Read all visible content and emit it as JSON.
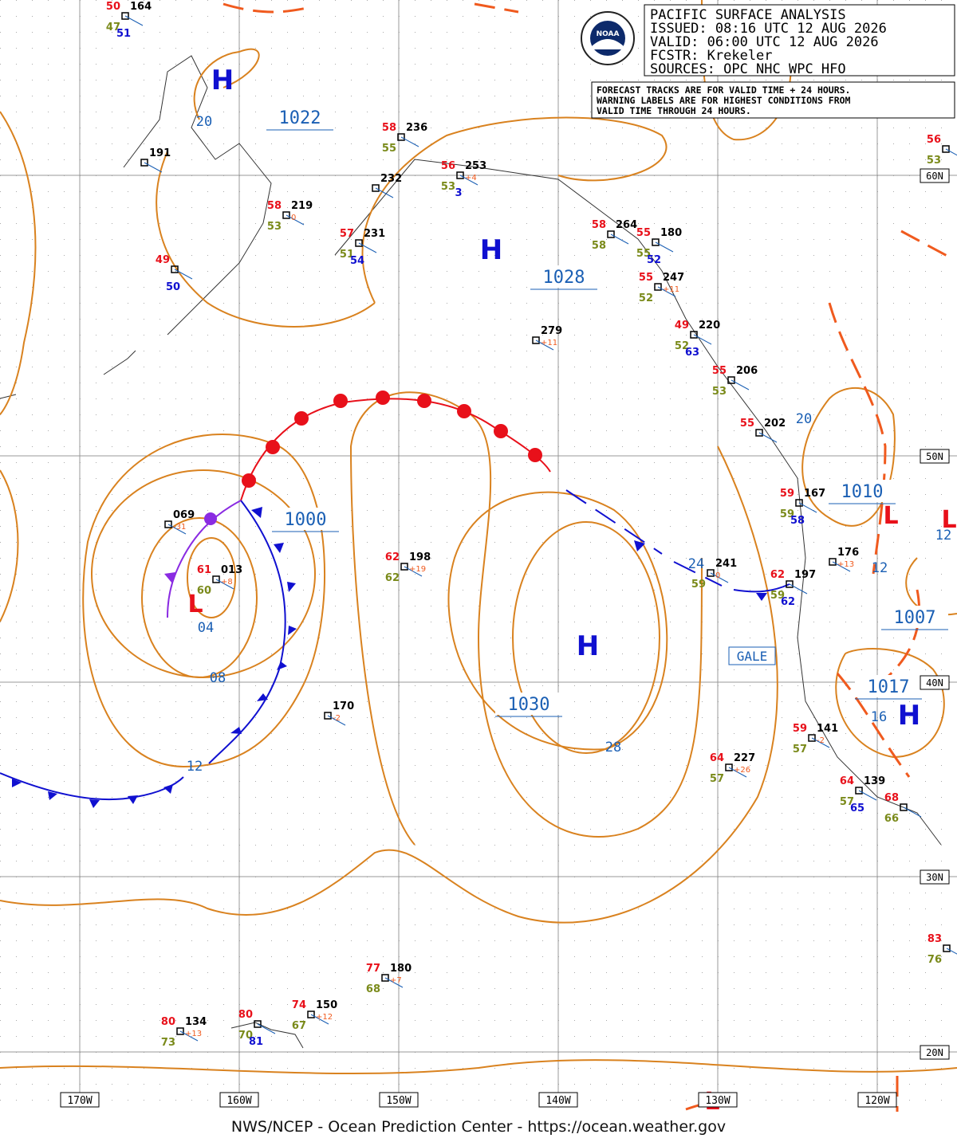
{
  "header": {
    "title": "PACIFIC SURFACE ANALYSIS",
    "issued": "ISSUED: 08:16 UTC 12 AUG 2026",
    "valid": "VALID:  06:00 UTC 12 AUG 2026",
    "fcstr": "FCSTR:  Krekeler",
    "sources": "SOURCES: OPC NHC WPC HFO"
  },
  "note": [
    "FORECAST TRACKS ARE FOR VALID TIME + 24 HOURS.",
    "WARNING LABELS ARE FOR HIGHEST CONDITIONS FROM",
    "VALID TIME THROUGH 24 HOURS."
  ],
  "logo": "NOAA",
  "longitudes": [
    "170W",
    "160W",
    "150W",
    "140W",
    "130W",
    "120W"
  ],
  "latitudes": [
    "60N",
    "50N",
    "40N",
    "30N",
    "20N"
  ],
  "centers": [
    "H",
    "H",
    "L",
    "H",
    "H",
    "L",
    "L",
    "L"
  ],
  "isobar_labels": [
    "1022",
    "20",
    "1028",
    "1000",
    "04",
    "08",
    "12",
    "1030",
    "28",
    "20",
    "24",
    "1010",
    "12",
    "12",
    "1007",
    "1017",
    "16"
  ],
  "warning": "GALE",
  "stations": [
    {
      "temp": "50",
      "dew": "47",
      "pres": "164",
      "extra": "51"
    },
    {
      "pres": "191"
    },
    {
      "temp": "58",
      "dew": "53",
      "pres": "219",
      "tend": "0"
    },
    {
      "temp": "57",
      "dew": "51",
      "pres": "231",
      "extra": "54"
    },
    {
      "temp": "49",
      "extra": "50"
    },
    {
      "temp": "58",
      "dew": "55",
      "pres": "236"
    },
    {
      "pres": "232"
    },
    {
      "temp": "56",
      "dew": "53",
      "pres": "253",
      "tend": "+4",
      "extra": "3"
    },
    {
      "temp": "58",
      "dew": "58",
      "pres": "264"
    },
    {
      "temp": "55",
      "dew": "55",
      "pres": "180",
      "extra": "52"
    },
    {
      "temp": "55",
      "dew": "52",
      "pres": "247",
      "tend": "+11"
    },
    {
      "pres": "279",
      "tend": "+11"
    },
    {
      "temp": "49",
      "dew": "52",
      "pres": "220",
      "extra": "63"
    },
    {
      "temp": "55",
      "dew": "53",
      "pres": "206"
    },
    {
      "temp": "55",
      "pres": "202"
    },
    {
      "temp": "59",
      "dew": "59",
      "pres": "167",
      "extra": "58"
    },
    {
      "pres": "069",
      "tend": "-31"
    },
    {
      "temp": "61",
      "dew": "60",
      "pres": "013",
      "tend": "+8"
    },
    {
      "temp": "62",
      "dew": "62",
      "pres": "198",
      "tend": "+19"
    },
    {
      "dew": "59",
      "pres": "241",
      "tend": "0"
    },
    {
      "temp": "62",
      "dew": "59",
      "pres": "197",
      "extra": "62"
    },
    {
      "pres": "176",
      "tend": "+13"
    },
    {
      "pres": "170",
      "tend": "-2"
    },
    {
      "temp": "64",
      "dew": "57",
      "pres": "227",
      "tend": "+26"
    },
    {
      "temp": "59",
      "dew": "57",
      "pres": "141",
      "tend": "-2"
    },
    {
      "temp": "64",
      "dew": "57",
      "pres": "139",
      "extra": "65"
    },
    {
      "temp": "68",
      "dew": "66"
    },
    {
      "temp": "56",
      "dew": "53"
    },
    {
      "temp": "83",
      "dew": "76"
    },
    {
      "temp": "77",
      "dew": "68",
      "pres": "180",
      "tend": "+7"
    },
    {
      "temp": "74",
      "dew": "67",
      "pres": "150",
      "tend": "+12"
    },
    {
      "temp": "80",
      "dew": "70",
      "extra": "81"
    },
    {
      "temp": "80",
      "dew": "73",
      "pres": "134",
      "tend": "+13"
    }
  ],
  "footer": "NWS/NCEP - Ocean Prediction Center - https://ocean.weather.gov"
}
